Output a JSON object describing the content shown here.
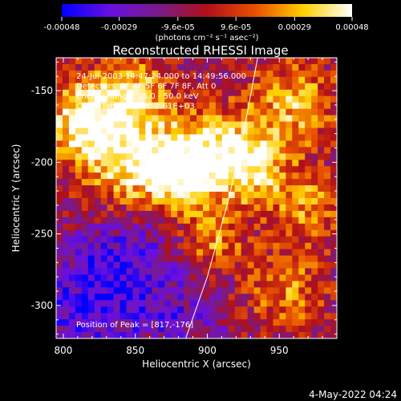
{
  "colorbar": {
    "ticks": [
      "-0.00048",
      "-0.00029",
      "-9.6e-05",
      "9.6e-05",
      "0.00029",
      "0.00048"
    ],
    "unit_label": "(photons cm⁻² s⁻¹ asec⁻²)",
    "colors": [
      "#0000ff",
      "#6a0fe0",
      "#7a1a8a",
      "#b01018",
      "#e85000",
      "#ffd000",
      "#ffffff"
    ],
    "range": [
      -0.00048,
      0.00048
    ]
  },
  "footer": {
    "date_stamp": "4-May-2022 04:24"
  },
  "chart_data": {
    "type": "heatmap",
    "title": "Reconstructed RHESSI Image",
    "xlabel": "Heliocentric X (arcsec)",
    "ylabel": "Heliocentric Y (arcsec)",
    "xlim": [
      795,
      990
    ],
    "ylim": [
      -323,
      -127
    ],
    "x_ticks": [
      "800",
      "850",
      "900",
      "950"
    ],
    "y_ticks": [
      "-150",
      "-200",
      "-250",
      "-300"
    ],
    "annotations": [
      "24-Jul-2003 14:47:24.000 to 14:49:56.000",
      "Detectors: 3F 4F 5F 6F 7F 8F, Att 0",
      "Energy Range: 25.0 - 50.0 keV",
      "Clean      Total counts: 2.61E+03"
    ],
    "peak_label": "Position of Peak = [817,-176]",
    "peak": [
      817,
      -176
    ],
    "limb_curve": [
      [
        885,
        -323
      ],
      [
        900,
        -280
      ],
      [
        915,
        -225
      ],
      [
        925,
        -180
      ],
      [
        935,
        -127
      ]
    ],
    "hot_regions": [
      {
        "x": 815,
        "y": -170,
        "s": 20,
        "v": 1.0
      },
      {
        "x": 850,
        "y": -200,
        "s": 25,
        "v": 0.9
      },
      {
        "x": 880,
        "y": -210,
        "s": 18,
        "v": 0.8
      },
      {
        "x": 905,
        "y": -190,
        "s": 20,
        "v": 0.75
      },
      {
        "x": 930,
        "y": -205,
        "s": 18,
        "v": 0.8
      },
      {
        "x": 960,
        "y": -160,
        "s": 22,
        "v": 0.7
      },
      {
        "x": 970,
        "y": -230,
        "s": 18,
        "v": 0.6
      },
      {
        "x": 955,
        "y": -290,
        "s": 20,
        "v": 0.55
      },
      {
        "x": 905,
        "y": -255,
        "s": 15,
        "v": 0.55
      },
      {
        "x": 850,
        "y": -150,
        "s": 18,
        "v": 0.65
      }
    ],
    "cold_regions": [
      {
        "x": 815,
        "y": -300,
        "s": 30,
        "v": 0.9
      },
      {
        "x": 845,
        "y": -270,
        "s": 22,
        "v": 0.7
      },
      {
        "x": 880,
        "y": -310,
        "s": 20,
        "v": 0.6
      },
      {
        "x": 860,
        "y": -235,
        "s": 15,
        "v": 0.4
      }
    ]
  }
}
